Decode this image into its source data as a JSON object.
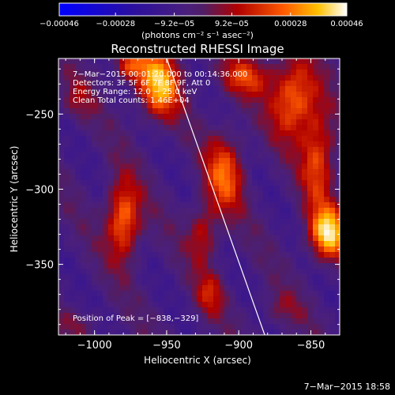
{
  "chart_data": {
    "type": "heatmap",
    "title": "Reconstructed RHESSI Image",
    "xlabel": "Heliocentric X (arcsec)",
    "ylabel": "Heliocentric Y (arcsec)",
    "xlim": [
      -1025,
      -830
    ],
    "ylim": [
      -397,
      -213
    ],
    "xticks": [
      -1000,
      -950,
      -900,
      -850
    ],
    "xtick_labels": [
      "−1000",
      "−950",
      "−900",
      "−850"
    ],
    "yticks": [
      -250,
      -300,
      -350
    ],
    "ytick_labels": [
      "−250",
      "−300",
      "−350"
    ],
    "colorbar": {
      "range": [
        -0.00046,
        0.00046
      ],
      "ticks": [
        -0.00046,
        -0.00028,
        -9.2e-05,
        9.2e-05,
        0.00028,
        0.00046
      ],
      "tick_labels": [
        "−0.00046",
        "−0.00028",
        "−9.2e−05",
        "9.2e−05",
        "0.00028",
        "0.00046"
      ],
      "units": "(photons cm⁻² s⁻¹ asec⁻²)"
    },
    "annotations": [
      "7−Mar−2015 00:01:20.000 to 00:14:36.000",
      "Detectors: 3F 5F 6F 7F 8F 9F, Att 0",
      "Energy Range: 12.0 − 25.0 keV",
      "Clean     Total counts: 1.46E+04"
    ],
    "peak_label": "Position of Peak = [−838,−329]",
    "limb_line": [
      [
        -950,
        -213
      ],
      [
        -882,
        -397
      ]
    ],
    "sources": [
      {
        "x": -955,
        "y": -230,
        "amp": 0.00042,
        "sx": 10,
        "sy": 15
      },
      {
        "x": -975,
        "y": -218,
        "amp": 0.00026,
        "sx": 8,
        "sy": 7
      },
      {
        "x": -895,
        "y": -225,
        "amp": 0.00024,
        "sx": 12,
        "sy": 9
      },
      {
        "x": -862,
        "y": -240,
        "amp": 0.00034,
        "sx": 11,
        "sy": 18
      },
      {
        "x": -845,
        "y": -280,
        "amp": 0.00028,
        "sx": 8,
        "sy": 22
      },
      {
        "x": -838,
        "y": -329,
        "amp": 0.00046,
        "sx": 9,
        "sy": 12
      },
      {
        "x": -910,
        "y": -290,
        "amp": 0.0003,
        "sx": 9,
        "sy": 18
      },
      {
        "x": -925,
        "y": -330,
        "amp": 0.0002,
        "sx": 7,
        "sy": 14
      },
      {
        "x": -980,
        "y": -320,
        "amp": 0.00036,
        "sx": 8,
        "sy": 18
      },
      {
        "x": -920,
        "y": -370,
        "amp": 0.00018,
        "sx": 7,
        "sy": 10
      },
      {
        "x": -1012,
        "y": -240,
        "amp": 0.00012,
        "sx": 8,
        "sy": 10
      },
      {
        "x": -870,
        "y": -380,
        "amp": 0.0001,
        "sx": 10,
        "sy": 8
      },
      {
        "x": -1010,
        "y": -390,
        "amp": 8e-05,
        "sx": 10,
        "sy": 6
      }
    ]
  },
  "footer": "7−Mar−2015 18:58"
}
